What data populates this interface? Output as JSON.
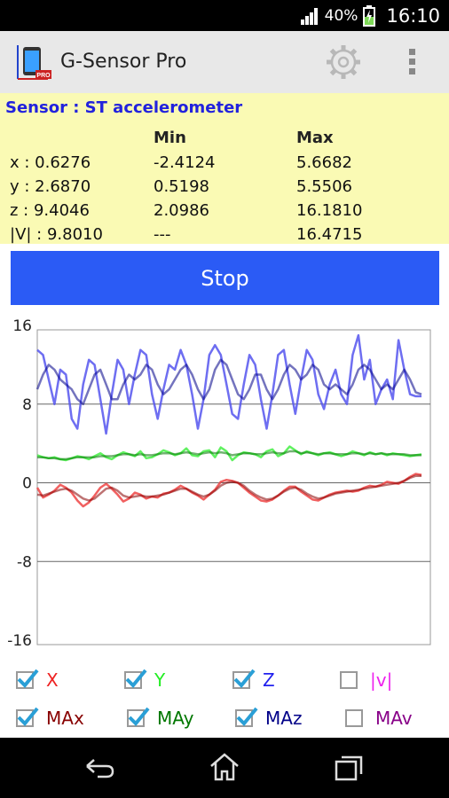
{
  "status_bar": {
    "battery_percent": "40%",
    "time": "16:10"
  },
  "app": {
    "title": "G-Sensor Pro"
  },
  "icons": {
    "logo": "app-logo-icon",
    "settings": "gear-icon",
    "menu": "overflow-menu-icon",
    "back": "back-icon",
    "home": "home-icon",
    "recents": "recent-apps-icon"
  },
  "sensor": {
    "label": "Sensor : ST accelerometer",
    "headers": {
      "min": "Min",
      "max": "Max"
    },
    "rows": [
      {
        "current": "x : 0.6276",
        "min": "-2.4124",
        "max": "5.6682"
      },
      {
        "current": "y : 2.6870",
        "min": "0.5198",
        "max": "5.5506"
      },
      {
        "current": "z : 9.4046",
        "min": "2.0986",
        "max": "16.1810"
      },
      {
        "current": "|V| : 9.8010",
        "min": "---",
        "max": "16.4715"
      }
    ]
  },
  "stop_button": {
    "label": "Stop"
  },
  "chart_data": {
    "type": "line",
    "y_ticks": [
      "16",
      "8",
      "0",
      "-8",
      "-16"
    ],
    "ylim": [
      -16,
      16
    ],
    "gridlines": [
      8,
      0,
      -8
    ],
    "series": [
      {
        "name": "X",
        "color": "#ee4444",
        "values": [
          -0.5,
          -1.5,
          -1.2,
          -0.8,
          -0.2,
          -0.5,
          -1.0,
          -1.8,
          -2.4,
          -2.0,
          -1.3,
          -0.5,
          -0.1,
          -0.6,
          -1.2,
          -1.9,
          -1.6,
          -1.0,
          -1.2,
          -1.6,
          -1.4,
          -1.5,
          -1.1,
          -1.0,
          -0.7,
          -0.3,
          -0.6,
          -1.0,
          -1.3,
          -1.7,
          -1.2,
          -0.7,
          0.1,
          0.3,
          0.2,
          0.0,
          -0.5,
          -1.0,
          -1.4,
          -1.8,
          -1.9,
          -1.7,
          -1.3,
          -0.8,
          -0.4,
          -0.4,
          -0.9,
          -1.3,
          -1.7,
          -1.8,
          -1.5,
          -1.2,
          -1.0,
          -0.9,
          -0.8,
          -0.9,
          -0.8,
          -0.5,
          -0.3,
          -0.4,
          -0.2,
          0.1,
          0.0,
          -0.1,
          0.2,
          0.6,
          0.9,
          0.8
        ]
      },
      {
        "name": "Y",
        "color": "#44ee44",
        "values": [
          2.8,
          2.6,
          2.5,
          2.6,
          2.4,
          2.3,
          2.5,
          2.7,
          2.6,
          2.4,
          2.7,
          3.0,
          2.6,
          2.4,
          2.8,
          3.1,
          2.9,
          2.7,
          3.2,
          2.5,
          2.6,
          2.9,
          3.3,
          3.1,
          2.8,
          3.0,
          3.5,
          2.8,
          2.7,
          3.2,
          3.3,
          2.6,
          3.6,
          3.2,
          2.3,
          2.8,
          3.1,
          3.0,
          2.9,
          2.6,
          3.2,
          3.4,
          2.7,
          3.0,
          3.7,
          3.3,
          2.9,
          3.2,
          3.0,
          2.8,
          3.0,
          3.1,
          2.9,
          2.7,
          2.9,
          3.2,
          3.0,
          2.8,
          3.1,
          2.9,
          3.0,
          2.8,
          3.0,
          2.9,
          2.8,
          2.7,
          2.8,
          2.9
        ]
      },
      {
        "name": "Z",
        "color": "#5555ee",
        "values": [
          13.5,
          13.0,
          10.5,
          8.0,
          11.5,
          11.0,
          6.5,
          5.5,
          10.0,
          12.5,
          12.0,
          8.5,
          5.0,
          9.0,
          12.5,
          11.5,
          8.0,
          11.0,
          13.5,
          13.0,
          9.0,
          6.5,
          9.5,
          12.0,
          11.5,
          13.5,
          12.0,
          9.0,
          5.5,
          8.5,
          13.0,
          14.0,
          13.0,
          10.0,
          7.0,
          6.5,
          10.0,
          13.0,
          12.0,
          8.5,
          5.5,
          9.0,
          13.0,
          13.5,
          10.0,
          7.0,
          10.5,
          13.5,
          12.5,
          9.0,
          7.5,
          10.0,
          11.5,
          9.0,
          8.0,
          13.0,
          15.0,
          10.5,
          12.5,
          8.0,
          9.5,
          10.5,
          8.5,
          14.5,
          11.5,
          9.0,
          8.8,
          8.8
        ]
      },
      {
        "name": "|v|",
        "color": "#dd22dd",
        "values": []
      },
      {
        "name": "MAx",
        "color": "#880000",
        "values": [
          -1.2,
          -1.3,
          -1.1,
          -0.9,
          -0.7,
          -0.6,
          -0.8,
          -1.2,
          -1.6,
          -1.8,
          -1.6,
          -1.1,
          -0.6,
          -0.5,
          -0.8,
          -1.3,
          -1.5,
          -1.4,
          -1.3,
          -1.4,
          -1.4,
          -1.3,
          -1.2,
          -1.0,
          -0.8,
          -0.6,
          -0.6,
          -0.9,
          -1.2,
          -1.4,
          -1.2,
          -0.8,
          -0.3,
          0.0,
          0.1,
          0.0,
          -0.3,
          -0.8,
          -1.2,
          -1.5,
          -1.7,
          -1.6,
          -1.3,
          -0.9,
          -0.6,
          -0.5,
          -0.7,
          -1.1,
          -1.4,
          -1.6,
          -1.5,
          -1.3,
          -1.1,
          -1.0,
          -0.9,
          -0.8,
          -0.7,
          -0.6,
          -0.5,
          -0.4,
          -0.3,
          -0.2,
          -0.1,
          0.0,
          0.2,
          0.5,
          0.7,
          0.7
        ]
      },
      {
        "name": "MAy",
        "color": "#007700",
        "values": [
          2.6,
          2.6,
          2.5,
          2.5,
          2.4,
          2.4,
          2.5,
          2.6,
          2.6,
          2.6,
          2.6,
          2.7,
          2.7,
          2.7,
          2.8,
          2.9,
          2.9,
          2.8,
          2.9,
          2.8,
          2.8,
          2.9,
          3.0,
          3.0,
          2.9,
          3.0,
          3.1,
          3.0,
          2.9,
          3.0,
          3.1,
          3.0,
          3.1,
          3.0,
          2.8,
          2.9,
          3.0,
          3.0,
          2.9,
          2.9,
          3.0,
          3.1,
          3.0,
          3.0,
          3.2,
          3.2,
          3.0,
          3.1,
          3.0,
          2.9,
          3.0,
          3.0,
          2.9,
          2.9,
          2.9,
          3.0,
          3.0,
          2.9,
          3.0,
          2.9,
          3.0,
          2.9,
          2.9,
          2.9,
          2.9,
          2.8,
          2.8,
          2.8
        ]
      },
      {
        "name": "MAz",
        "color": "#000088",
        "values": [
          9.5,
          11.0,
          12.0,
          11.5,
          10.5,
          10.0,
          9.5,
          8.5,
          8.0,
          9.5,
          11.0,
          11.5,
          10.0,
          8.5,
          8.5,
          10.0,
          11.0,
          10.5,
          11.0,
          12.0,
          11.5,
          10.0,
          9.0,
          9.5,
          10.5,
          11.5,
          12.0,
          11.0,
          9.5,
          8.5,
          9.5,
          11.5,
          12.5,
          12.0,
          10.5,
          9.0,
          8.5,
          9.5,
          11.0,
          11.0,
          9.5,
          8.5,
          9.5,
          11.0,
          12.0,
          11.5,
          10.5,
          11.0,
          12.0,
          11.5,
          10.0,
          9.5,
          10.0,
          9.5,
          9.0,
          10.0,
          11.5,
          12.0,
          11.5,
          10.5,
          9.5,
          10.0,
          9.5,
          10.5,
          11.5,
          10.5,
          9.2,
          9.0
        ]
      },
      {
        "name": "MAv",
        "color": "#880088",
        "values": []
      }
    ]
  },
  "legend": [
    {
      "key": "x",
      "label": "X",
      "checked": true,
      "color": "#ee2222"
    },
    {
      "key": "y",
      "label": "Y",
      "checked": true,
      "color": "#22ee22"
    },
    {
      "key": "z",
      "label": "Z",
      "checked": true,
      "color": "#2222ee"
    },
    {
      "key": "v",
      "label": "|v|",
      "checked": false,
      "color": "#ee22ee"
    },
    {
      "key": "max",
      "label": "MAx",
      "checked": true,
      "color": "#880000"
    },
    {
      "key": "may",
      "label": "MAy",
      "checked": true,
      "color": "#007700"
    },
    {
      "key": "maz",
      "label": "MAz",
      "checked": true,
      "color": "#000088"
    },
    {
      "key": "mav",
      "label": "MAv",
      "checked": false,
      "color": "#880088"
    }
  ]
}
